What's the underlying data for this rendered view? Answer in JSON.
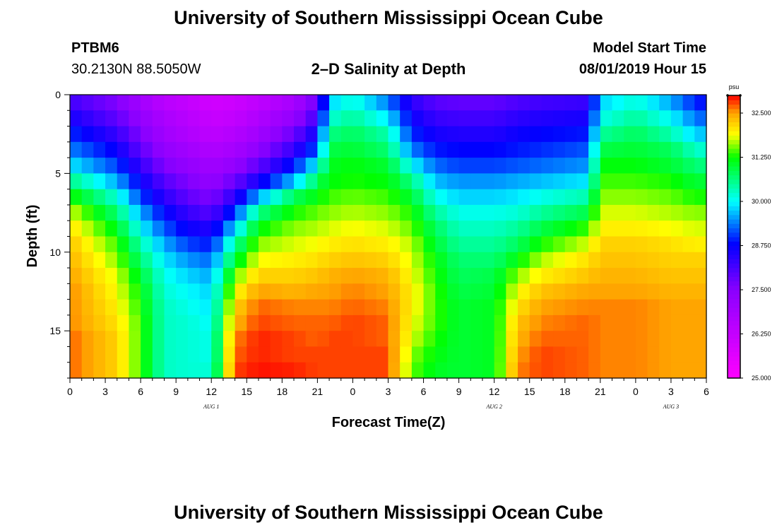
{
  "page": {
    "title_top": "University of Southern Mississippi Ocean Cube",
    "title_bottom": "University of Southern Mississippi Ocean Cube",
    "station_id": "PTBM6",
    "station_coords": "30.2130N 88.5050W",
    "plot_title": "2–D Salinity at Depth",
    "model_start_label": "Model Start Time",
    "model_start_value": "08/01/2019 Hour 15"
  },
  "chart_data": {
    "type": "heatmap",
    "title": "2-D Salinity at Depth",
    "xlabel": "Forecast Time(Z)",
    "ylabel": "Depth (ft)",
    "x_range_hours": [
      0,
      54
    ],
    "y_range_ft": [
      0,
      18
    ],
    "x_ticks": [
      "0",
      "3",
      "6",
      "9",
      "12",
      "15",
      "18",
      "21",
      "0",
      "3",
      "6",
      "9",
      "12",
      "15",
      "18",
      "21",
      "0",
      "3",
      "6"
    ],
    "y_ticks": [
      "0",
      "5",
      "10",
      "15"
    ],
    "date_labels": [
      {
        "label": "AUG 1",
        "hour": 12
      },
      {
        "label": "AUG 2",
        "hour": 36
      },
      {
        "label": "AUG 3",
        "hour": 51
      }
    ],
    "colorbar": {
      "unit": "psu",
      "range": [
        25.0,
        33.0
      ],
      "labels": [
        "32.500",
        "31.250",
        "30.000",
        "28.750",
        "27.500",
        "26.250",
        "25.000"
      ],
      "label_values": [
        32.5,
        31.25,
        30.0,
        28.75,
        27.5,
        26.25,
        25.0
      ],
      "colormap_stops": [
        {
          "value": 25.0,
          "color": "#ff00ff"
        },
        {
          "value": 27.5,
          "color": "#8a00ff"
        },
        {
          "value": 28.8,
          "color": "#0000ff"
        },
        {
          "value": 30.0,
          "color": "#00ffff"
        },
        {
          "value": 31.25,
          "color": "#00ff00"
        },
        {
          "value": 31.9,
          "color": "#ffff00"
        },
        {
          "value": 32.5,
          "color": "#ffa500"
        },
        {
          "value": 33.0,
          "color": "#ff0000"
        }
      ]
    },
    "depth_levels_ft": [
      0.5,
      1.5,
      2.5,
      3.5,
      4.5,
      5.5,
      6.5,
      7.5,
      8.5,
      9.5,
      10.5,
      11.5,
      12.5,
      13.5,
      14.5,
      15.5,
      16.5,
      17.5
    ],
    "salinity_profiles": [
      {
        "hour": 0,
        "values": [
          28.2,
          28.6,
          29.0,
          29.4,
          29.9,
          30.6,
          31.3,
          31.8,
          32.1,
          32.3,
          32.4,
          32.5,
          32.6,
          32.6,
          32.6,
          32.7,
          32.7,
          32.7
        ]
      },
      {
        "hour": 4,
        "values": [
          27.6,
          27.9,
          28.3,
          28.7,
          29.1,
          29.6,
          30.2,
          30.7,
          31.1,
          31.4,
          31.6,
          31.8,
          31.9,
          32.0,
          32.1,
          32.2,
          32.2,
          32.2
        ]
      },
      {
        "hour": 6,
        "values": [
          27.0,
          27.3,
          27.6,
          27.9,
          28.3,
          28.7,
          29.1,
          29.6,
          30.0,
          30.4,
          30.7,
          31.0,
          31.2,
          31.3,
          31.4,
          31.4,
          31.4,
          31.4
        ]
      },
      {
        "hour": 8,
        "values": [
          26.5,
          26.8,
          27.0,
          27.3,
          27.6,
          28.0,
          28.4,
          28.8,
          29.2,
          29.6,
          29.9,
          30.1,
          30.2,
          30.3,
          30.3,
          30.3,
          30.3,
          30.3
        ]
      },
      {
        "hour": 10,
        "values": [
          26.3,
          26.5,
          26.7,
          27.0,
          27.3,
          27.6,
          27.9,
          28.3,
          28.7,
          29.1,
          29.5,
          29.8,
          30.0,
          30.1,
          30.2,
          30.2,
          30.2,
          30.2
        ]
      },
      {
        "hour": 12,
        "values": [
          26.0,
          26.2,
          26.4,
          26.7,
          27.0,
          27.3,
          27.6,
          28.0,
          28.5,
          28.9,
          29.3,
          29.6,
          29.8,
          29.9,
          30.0,
          30.1,
          30.1,
          30.2
        ]
      },
      {
        "hour": 14,
        "values": [
          26.1,
          26.3,
          26.6,
          26.9,
          27.3,
          27.8,
          28.4,
          29.1,
          29.8,
          30.5,
          31.0,
          31.5,
          31.9,
          32.2,
          32.4,
          32.6,
          32.7,
          32.8
        ]
      },
      {
        "hour": 16,
        "values": [
          26.4,
          26.7,
          27.0,
          27.4,
          27.9,
          28.6,
          29.6,
          30.6,
          31.2,
          31.6,
          31.9,
          32.2,
          32.5,
          32.7,
          32.8,
          32.9,
          32.9,
          32.95
        ]
      },
      {
        "hour": 19,
        "values": [
          26.9,
          27.3,
          27.8,
          28.3,
          28.9,
          29.7,
          30.8,
          31.3,
          31.6,
          31.8,
          32.0,
          32.2,
          32.4,
          32.6,
          32.7,
          32.8,
          32.8,
          32.9
        ]
      },
      {
        "hour": 21,
        "values": [
          27.8,
          28.2,
          28.7,
          29.2,
          30.0,
          30.8,
          31.2,
          31.5,
          31.7,
          31.9,
          32.1,
          32.3,
          32.5,
          32.6,
          32.7,
          32.7,
          32.8,
          32.8
        ]
      },
      {
        "hour": 22,
        "values": [
          29.8,
          30.2,
          30.6,
          30.9,
          31.1,
          31.2,
          31.4,
          31.6,
          31.8,
          32.0,
          32.2,
          32.4,
          32.5,
          32.6,
          32.7,
          32.8,
          32.8,
          32.8
        ]
      },
      {
        "hour": 24,
        "values": [
          30.2,
          30.5,
          30.8,
          31.0,
          31.2,
          31.3,
          31.5,
          31.7,
          31.9,
          32.1,
          32.3,
          32.5,
          32.6,
          32.7,
          32.8,
          32.8,
          32.8,
          32.8
        ]
      },
      {
        "hour": 27,
        "values": [
          29.4,
          29.9,
          30.4,
          30.7,
          31.0,
          31.2,
          31.4,
          31.6,
          31.8,
          32.0,
          32.2,
          32.4,
          32.5,
          32.6,
          32.7,
          32.7,
          32.8,
          32.8
        ]
      },
      {
        "hour": 29,
        "values": [
          28.4,
          28.7,
          29.0,
          29.4,
          30.0,
          30.6,
          31.0,
          31.3,
          31.5,
          31.7,
          31.8,
          31.9,
          32.0,
          32.0,
          31.9,
          31.8,
          31.6,
          31.5
        ]
      },
      {
        "hour": 31,
        "values": [
          28.0,
          28.3,
          28.6,
          28.9,
          29.3,
          29.7,
          30.1,
          30.5,
          30.8,
          31.0,
          31.2,
          31.3,
          31.4,
          31.4,
          31.4,
          31.3,
          31.2,
          31.1
        ]
      },
      {
        "hour": 33,
        "values": [
          27.9,
          28.2,
          28.5,
          28.8,
          29.1,
          29.5,
          29.8,
          30.1,
          30.3,
          30.5,
          30.7,
          30.8,
          30.9,
          31.0,
          31.0,
          31.0,
          31.0,
          31.0
        ]
      },
      {
        "hour": 36,
        "values": [
          27.9,
          28.2,
          28.5,
          28.8,
          29.1,
          29.5,
          29.8,
          30.1,
          30.3,
          30.5,
          30.7,
          30.9,
          31.0,
          31.1,
          31.1,
          31.1,
          31.1,
          31.1
        ]
      },
      {
        "hour": 38,
        "values": [
          28.1,
          28.4,
          28.7,
          28.9,
          29.2,
          29.6,
          29.9,
          30.2,
          30.5,
          30.8,
          31.2,
          31.6,
          31.9,
          32.1,
          32.3,
          32.4,
          32.5,
          32.6
        ]
      },
      {
        "hour": 40,
        "values": [
          28.2,
          28.5,
          28.8,
          29.0,
          29.3,
          29.7,
          30.1,
          30.5,
          30.9,
          31.3,
          31.7,
          32.0,
          32.3,
          32.5,
          32.6,
          32.7,
          32.8,
          32.8
        ]
      },
      {
        "hour": 44,
        "values": [
          28.3,
          28.6,
          28.9,
          29.2,
          29.5,
          29.9,
          30.4,
          30.9,
          31.4,
          31.8,
          32.1,
          32.3,
          32.5,
          32.6,
          32.7,
          32.7,
          32.7,
          32.7
        ]
      },
      {
        "hour": 45,
        "values": [
          29.8,
          30.1,
          30.5,
          30.9,
          31.2,
          31.4,
          31.6,
          31.8,
          32.0,
          32.2,
          32.3,
          32.4,
          32.5,
          32.6,
          32.6,
          32.6,
          32.6,
          32.6
        ]
      },
      {
        "hour": 48,
        "values": [
          30.2,
          30.5,
          30.8,
          31.0,
          31.2,
          31.4,
          31.6,
          31.8,
          32.0,
          32.2,
          32.3,
          32.4,
          32.5,
          32.6,
          32.6,
          32.6,
          32.6,
          32.6
        ]
      },
      {
        "hour": 51,
        "values": [
          29.6,
          30.0,
          30.4,
          30.8,
          31.0,
          31.3,
          31.5,
          31.7,
          31.9,
          32.1,
          32.2,
          32.3,
          32.4,
          32.5,
          32.5,
          32.5,
          32.5,
          32.5
        ]
      },
      {
        "hour": 53,
        "values": [
          29.0,
          29.4,
          29.8,
          30.3,
          30.7,
          31.0,
          31.3,
          31.6,
          31.8,
          32.0,
          32.2,
          32.3,
          32.4,
          32.5,
          32.5,
          32.5,
          32.5,
          32.5
        ]
      },
      {
        "hour": 54,
        "values": [
          28.8,
          29.2,
          29.7,
          30.2,
          30.6,
          31.0,
          31.3,
          31.6,
          31.8,
          32.0,
          32.2,
          32.3,
          32.4,
          32.5,
          32.5,
          32.5,
          32.5,
          32.5
        ]
      }
    ]
  }
}
